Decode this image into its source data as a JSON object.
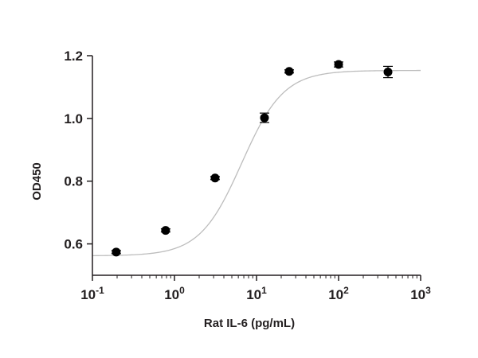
{
  "chart_data": {
    "type": "scatter",
    "xlabel": "Rat IL-6 (pg/mL)",
    "ylabel": "OD450",
    "x_scale": "log",
    "xlim": [
      0.1,
      1000
    ],
    "ylim": [
      0.5,
      1.2
    ],
    "x_ticks": [
      {
        "value": 0.1,
        "base": "10",
        "exp": "-1"
      },
      {
        "value": 1,
        "base": "10",
        "exp": "0"
      },
      {
        "value": 10,
        "base": "10",
        "exp": "1"
      },
      {
        "value": 100,
        "base": "10",
        "exp": "2"
      },
      {
        "value": 1000,
        "base": "10",
        "exp": "3"
      }
    ],
    "y_ticks": [
      {
        "value": 0.6,
        "label": "0.6"
      },
      {
        "value": 0.8,
        "label": "0.8"
      },
      {
        "value": 1.0,
        "label": "1.0"
      },
      {
        "value": 1.2,
        "label": "1.2"
      }
    ],
    "points": [
      {
        "x": 0.195,
        "y": 0.574,
        "err": 0.005
      },
      {
        "x": 0.78,
        "y": 0.643,
        "err": 0.005
      },
      {
        "x": 3.125,
        "y": 0.81,
        "err": 0.005
      },
      {
        "x": 12.5,
        "y": 1.002,
        "err": 0.015
      },
      {
        "x": 25,
        "y": 1.15,
        "err": 0.005
      },
      {
        "x": 100,
        "y": 1.172,
        "err": 0.008
      },
      {
        "x": 400,
        "y": 1.148,
        "err": 0.018
      }
    ],
    "fit_curve": {
      "model": "4PL",
      "bottom": 0.562,
      "top": 1.153,
      "ec50": 6.6,
      "hill": 1.7
    },
    "grid": false,
    "colors": {
      "points": "#000000",
      "curve": "#bdbdbd",
      "axis": "#231f20"
    }
  }
}
